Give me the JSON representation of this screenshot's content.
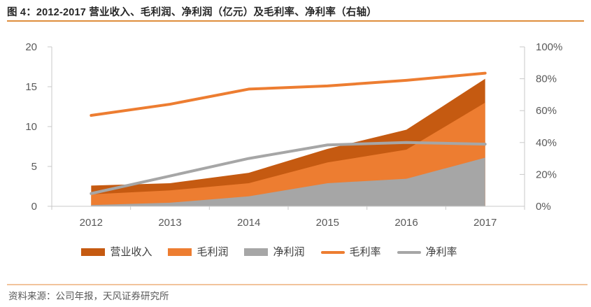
{
  "title": "图 4：2012-2017 营业收入、毛利润、净利润（亿元）及毛利率、净利率（右轴）",
  "source": "资料来源：公司年报，天风证券研究所",
  "colors": {
    "dark_orange": "#C55A11",
    "orange": "#ED7D31",
    "gray": "#A6A6A6",
    "axis_line": "#C9C9C9",
    "tick_label": "#595959",
    "title_rule": "#DF8E3C",
    "footer_rule": "#F2C49B"
  },
  "chart_data": {
    "type": "area",
    "subtype": "combo area + line (line on right % axis)",
    "title": "2012-2017 营业收入、毛利润、净利润（亿元）及毛利率、净利率（右轴）",
    "categories": [
      "2012",
      "2013",
      "2014",
      "2015",
      "2016",
      "2017"
    ],
    "series": [
      {
        "key": "revenue",
        "name": "营业收入",
        "type": "area",
        "axis": "left",
        "color": "#C55A11",
        "values": [
          2.6,
          2.9,
          4.2,
          7.2,
          9.6,
          16.0
        ]
      },
      {
        "key": "gross-profit",
        "name": "毛利润",
        "type": "area",
        "axis": "left",
        "color": "#ED7D31",
        "values": [
          1.5,
          2.0,
          2.9,
          5.5,
          7.1,
          13.0
        ]
      },
      {
        "key": "net-profit",
        "name": "净利润",
        "type": "area",
        "axis": "left",
        "color": "#A6A6A6",
        "values": [
          0.15,
          0.45,
          1.25,
          2.9,
          3.45,
          6.1
        ]
      },
      {
        "key": "gross-margin",
        "name": "毛利率",
        "type": "line",
        "axis": "right",
        "color": "#ED7D31",
        "values": [
          57,
          64,
          73.5,
          75.5,
          79,
          83.5
        ]
      },
      {
        "key": "net-margin",
        "name": "净利率",
        "type": "line",
        "axis": "right",
        "color": "#A6A6A6",
        "values": [
          8,
          19,
          30,
          38.5,
          40,
          39
        ]
      }
    ],
    "left_axis": {
      "min": 0,
      "max": 20,
      "labels": [
        "0",
        "5",
        "10",
        "15",
        "20"
      ]
    },
    "right_axis": {
      "min": 0,
      "max": 100,
      "labels": [
        "0%",
        "20%",
        "40%",
        "60%",
        "80%",
        "100%"
      ]
    },
    "legend_position": "bottom",
    "grid": false,
    "xlabel": "",
    "ylabel_left": "亿元",
    "ylabel_right": "%"
  }
}
